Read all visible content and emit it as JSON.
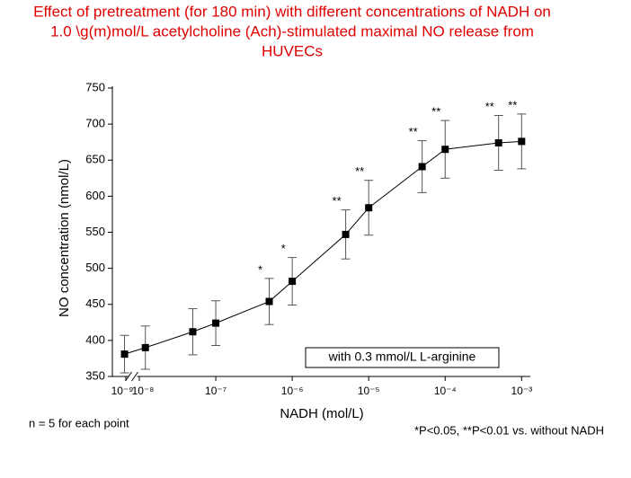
{
  "chart_data": {
    "type": "line",
    "title": [
      "Effect of pretreatment (for 180 min) with different concentrations of NADH on",
      "1.0 \\g(m)mol/L acetylcholine (Ach)-stimulated maximal NO release from",
      "HUVECs"
    ],
    "x_label": "NADH (mol/L)",
    "y_label": "NO concentration (nmol/L)",
    "x_scale": "log",
    "x_axis_break": true,
    "xlim": [
      1e-10,
      0.0013
    ],
    "xticks": [
      {
        "value": 1e-09,
        "label": "10⁻⁹"
      },
      {
        "value": 1e-08,
        "label": "10⁻⁸"
      },
      {
        "value": 1e-07,
        "label": "10⁻⁷"
      },
      {
        "value": 1e-06,
        "label": "10⁻⁶"
      },
      {
        "value": 1e-05,
        "label": "10⁻⁵"
      },
      {
        "value": 0.0001,
        "label": "10⁻⁴"
      },
      {
        "value": 0.001,
        "label": "10⁻³"
      }
    ],
    "ylim": [
      350,
      750
    ],
    "yticks": [
      350,
      400,
      450,
      500,
      550,
      600,
      650,
      700,
      750
    ],
    "x": [
      8e-10,
      1.2e-08,
      5e-08,
      1e-07,
      5e-07,
      1e-06,
      5e-06,
      1e-05,
      5e-05,
      0.0001,
      0.0005,
      0.001
    ],
    "series": [
      {
        "name": "with 0.3 mmol/L L-arginine",
        "color": "#000000",
        "values": [
          381,
          390,
          412,
          424,
          454,
          482,
          547,
          584,
          641,
          665,
          674,
          676
        ],
        "errors": [
          26,
          30,
          32,
          31,
          32,
          33,
          34,
          38,
          36,
          40,
          38,
          38
        ],
        "annotations": [
          null,
          null,
          null,
          null,
          "*",
          "*",
          "**",
          "**",
          "**",
          "**",
          "**",
          "**"
        ]
      }
    ],
    "legend": "lower right",
    "notes": [
      "n = 5 for each point",
      "*P<0.05, **P<0.01 vs. without NADH"
    ]
  }
}
